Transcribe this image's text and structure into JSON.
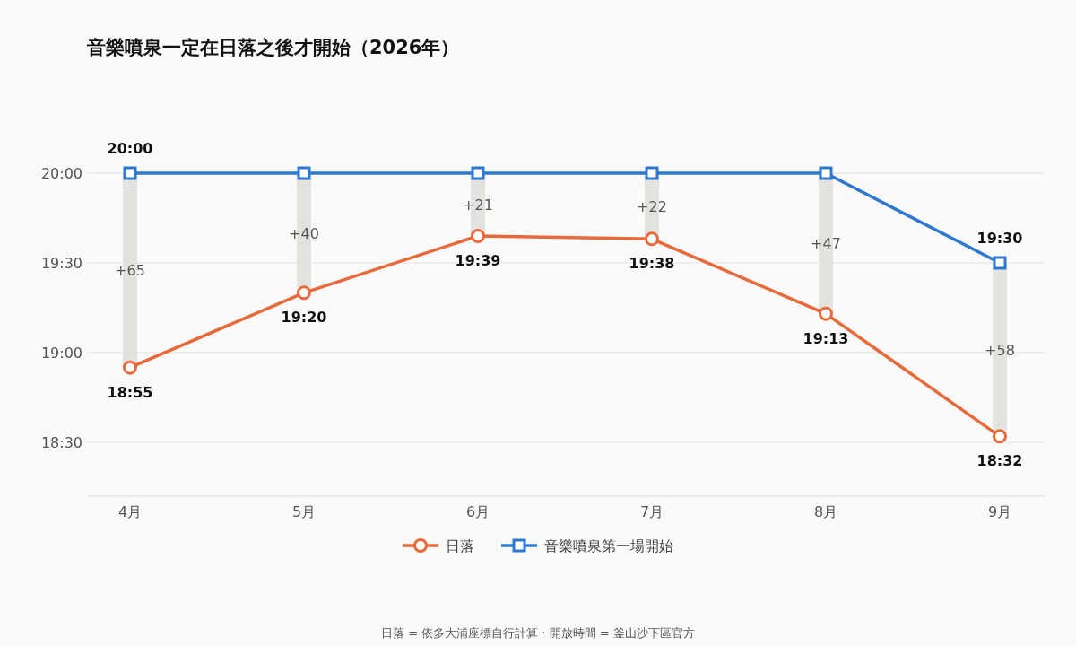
{
  "chart_data": {
    "type": "line",
    "title": "音樂噴泉一定在日落之後才開始（2026年）",
    "categories": [
      "4月",
      "5月",
      "6月",
      "7月",
      "8月",
      "9月"
    ],
    "ylim": [
      18.2,
      20
    ],
    "yticks": [
      {
        "value": 18.5,
        "label": "18:30"
      },
      {
        "value": 19,
        "label": "19:00"
      },
      {
        "value": 19.5,
        "label": "19:30"
      },
      {
        "value": 20,
        "label": "20:00"
      }
    ],
    "grid": "y",
    "legend": "bottom",
    "line_style": "solid",
    "series": [
      {
        "type": "bar",
        "color": "#e3e2df",
        "base": [
          18.92,
          19.33,
          19.65,
          19.63,
          19.22,
          18.53
        ],
        "values": [
          1.08,
          0.67,
          0.35,
          0.37,
          0.78,
          0.97
        ]
      },
      {
        "name": "日落",
        "color": "#e8693a",
        "marker": "circle",
        "values": [
          18.9167,
          19.3333,
          19.65,
          19.6333,
          19.2167,
          18.5333
        ],
        "value_labels": [
          "18:55",
          "19:20",
          "19:39",
          "19:38",
          "19:13",
          "18:32"
        ]
      },
      {
        "name": "音樂噴泉第一場開始",
        "color": "#2e78d0",
        "marker": "square",
        "values": [
          20,
          20,
          20,
          20,
          20,
          19.5
        ],
        "value_labels": [
          "20:00",
          null,
          null,
          null,
          null,
          "19:30"
        ]
      }
    ],
    "annotations": [
      "+65",
      "+40",
      "+21",
      "+22",
      "+47",
      "+58",
      "日落 = 依多大浦座標自行計算 · 開放時間 = 釜山沙下區官方"
    ]
  }
}
